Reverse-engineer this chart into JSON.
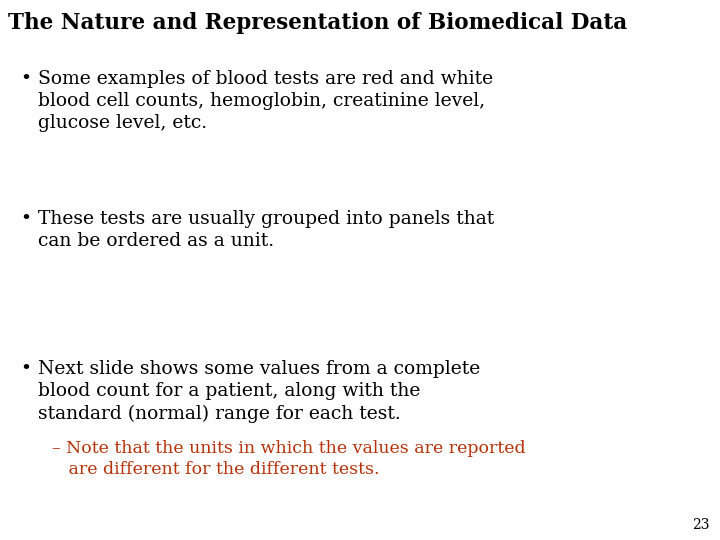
{
  "title": "The Nature and Representation of Biomedical Data",
  "title_color": "#000000",
  "title_fontsize": 15.5,
  "title_bold": true,
  "background_color": "#ffffff",
  "bullet_color": "#000000",
  "bullet_fontsize": 13.5,
  "sub_bullet_color": "#b5320a",
  "sub_bullet_fontsize": 12.5,
  "page_number": "23",
  "page_number_color": "#000000",
  "page_number_fontsize": 10,
  "bullets": [
    "Some examples of blood tests are red and white\nblood cell counts, hemoglobin, creatinine level,\nglucose level, etc.",
    "These tests are usually grouped into panels that\ncan be ordered as a unit.",
    "Next slide shows some values from a complete\nblood count for a patient, along with the\nstandard (normal) range for each test."
  ],
  "sub_bullet_text": "– Note that the units in which the values are reported\n   are different for the different tests."
}
